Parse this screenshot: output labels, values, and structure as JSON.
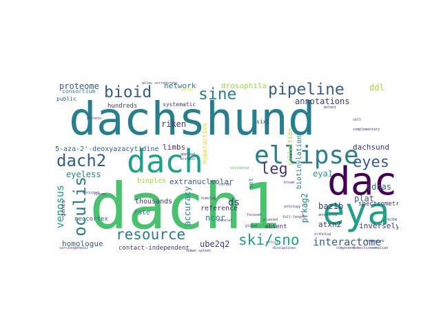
{
  "palette": {
    "dark_purple": "#440154",
    "purple": "#46337e",
    "blue": "#365c8d",
    "teal": "#277f8e",
    "green": "#1fa187",
    "lime": "#4ac16d",
    "yellow": "#a0da39",
    "gold": "#dfe318"
  },
  "words": {
    "dachshund_big": "dachshund",
    "dach1": "dach1",
    "dach": "dach",
    "eya": "eya",
    "dac": "dac",
    "ellipse": "ellipse",
    "pipeline": "pipeline",
    "sine": "sine",
    "bioid": "bioid",
    "dach2": "dach2",
    "leg": "leg",
    "eyes": "eyes",
    "oculis": "oculis",
    "resource": "resource",
    "ski_sno": "ski/sno",
    "interactome": "interactome",
    "venosus": "venosus",
    "proteome": "proteome",
    "network": "network",
    "drosophila": "drosophila",
    "ddl": "ddl",
    "annotations": "annotations",
    "riken": "riken",
    "limbs": "limbs",
    "deoxy": "5-aza-2'-deoxyazacytidine",
    "dachsund": "dachsund",
    "spectrometry": "spectrometry",
    "eyeless": "eyeless",
    "bioplex": "bioplex",
    "extranucleolar": "extranucleolar",
    "eya1": "eya1",
    "plat": "plat",
    "cdnas": "cdnas",
    "ds": "ds",
    "accuracy": "accuracy",
    "reference": "reference",
    "ncor": "ncor",
    "baz1b": "baz1b",
    "prkag2": "prkag2",
    "homologue": "homologue",
    "thousands": "thousands",
    "ube2q2": "ube2q2",
    "atxn2": "atxn2",
    "inversely": "inversely",
    "contact_independent": "contact-independent",
    "neocortex": "neocortex",
    "fate": "fate",
    "consortium": "consortium",
    "public": "public",
    "hundreds": "hundreds",
    "systematic": "systematic",
    "collection": "collection",
    "biotinylation": "biotinylation",
    "hyperactive": "hyperactive",
    "absent": "absent",
    "six1": "six1",
    "set": "set",
    "genes": "genes",
    "atlas": "atlas",
    "corroborate": "corroborate",
    "yields": "yields",
    "validated": "validated",
    "applied": "applied",
    "british": "british",
    "ecbe": "ecbe",
    "effort": "effort",
    "enriched": "enriched",
    "global": "global",
    "planned": "planned",
    "focused": "focused",
    "homolog": "homolog",
    "lateral": "lateral",
    "cortex": "cortex",
    "mutant": "mutant",
    "broad": "broad",
    "ontology": "ontology",
    "full_length": "full-length",
    "annotated": "annotated",
    "ortholog": "ortholog",
    "complementary": "complementary",
    "mammalian": "mammalian",
    "framework": "framework",
    "domestic": "domestic",
    "component": "component",
    "carcinogenesis": "carcinogenesis",
    "disciplines": "disciplines",
    "human_spleen": "human spleen",
    "clones": "clones",
    "protein": "protein",
    "cell": "cell"
  }
}
